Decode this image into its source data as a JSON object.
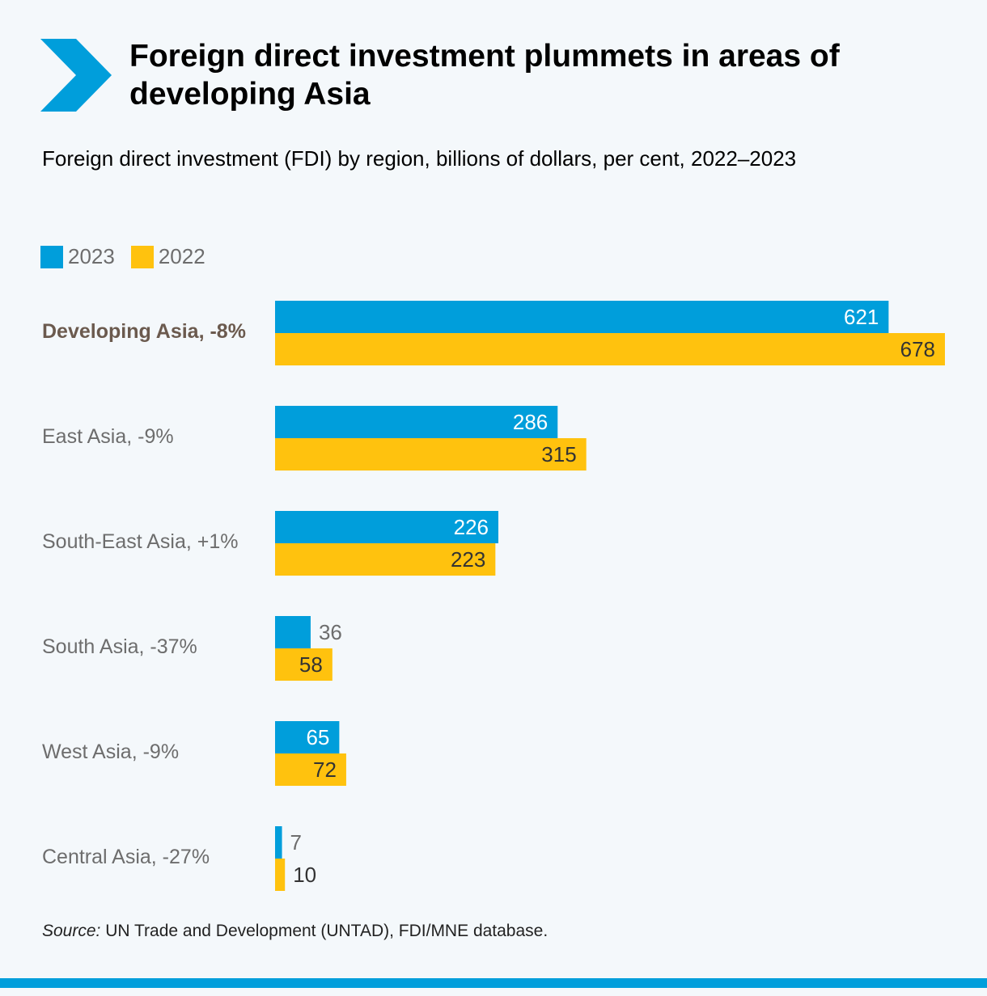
{
  "header": {
    "title": "Foreign direct investment plummets in areas of developing Asia",
    "subtitle": "Foreign direct investment (FDI) by region, billions of dollars, per cent, 2022–2023"
  },
  "legend": [
    {
      "label": "2023",
      "color": "#009edb"
    },
    {
      "label": "2022",
      "color": "#ffc20e"
    }
  ],
  "source": {
    "prefix": "Source:",
    "text": " UN Trade and Development (UNTAD), FDI/MNE database."
  },
  "colors": {
    "accent": "#009edb",
    "secondary": "#ffc20e",
    "label_text": "#6d6d6d",
    "bold_label_text": "#6b5a4e",
    "background": "#f4f8fb"
  },
  "chart_data": {
    "type": "bar",
    "orientation": "horizontal",
    "categories": [
      "Developing Asia, -8%",
      "East Asia, -9%",
      "South-East Asia, +1%",
      "South Asia, -37%",
      "West Asia, -9%",
      "Central Asia, -27%"
    ],
    "highlighted_category": "Developing Asia, -8%",
    "series": [
      {
        "name": "2023",
        "values": [
          621,
          286,
          226,
          36,
          65,
          7
        ]
      },
      {
        "name": "2022",
        "values": [
          678,
          315,
          223,
          58,
          72,
          10
        ]
      }
    ],
    "xlim": [
      0,
      678
    ],
    "grid": false,
    "legend_position": "top-left"
  }
}
